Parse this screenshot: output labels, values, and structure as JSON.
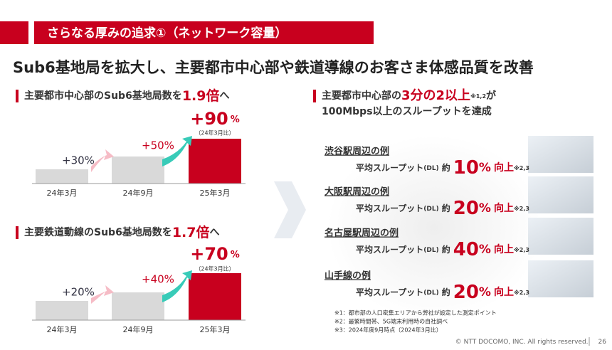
{
  "header": {
    "title": "さらなる厚みの追求①（ネットワーク容量）"
  },
  "headline": "Sub6基地局を拡大し、主要都市中心部や鉄道導線のお客さま体感品質を改善",
  "left": {
    "charts": [
      {
        "heading_pre": "主要都市中心部のSub6基地局数を",
        "heading_em": "1.9倍",
        "heading_post": "へ",
        "categories": [
          "24年3月",
          "24年9月",
          "25年3月"
        ],
        "step_labels": [
          "+30%",
          "+50%"
        ],
        "total": "+90",
        "total_unit": "%",
        "total_note": "（24年3月比）"
      },
      {
        "heading_pre": "主要鉄道動線のSub6基地局数を",
        "heading_em": "1.7倍",
        "heading_post": "へ",
        "categories": [
          "24年3月",
          "24年9月",
          "25年3月"
        ],
        "step_labels": [
          "+20%",
          "+40%"
        ],
        "total": "+70",
        "total_unit": "%",
        "total_note": "（24年3月比）"
      }
    ]
  },
  "right": {
    "heading": {
      "pre": "主要都市中心部の",
      "em": "3分の2以上",
      "note": "※1,2",
      "post": "が",
      "line2": "100Mbps以上のスループットを達成"
    },
    "examples": [
      {
        "name": "渋谷駅周辺の例",
        "label": "平均スループット",
        "dl": "(DL)",
        "approx": "約",
        "value": "10",
        "unit": "%",
        "suffix": "向上",
        "note": "※2,3"
      },
      {
        "name": "大阪駅周辺の例",
        "label": "平均スループット",
        "dl": "(DL)",
        "approx": "約",
        "value": "20",
        "unit": "%",
        "suffix": "向上",
        "note": "※2,3"
      },
      {
        "name": "名古屋駅周辺の例",
        "label": "平均スループット",
        "dl": "(DL)",
        "approx": "約",
        "value": "40",
        "unit": "%",
        "suffix": "向上",
        "note": "※2,3"
      },
      {
        "name": "山手線の例",
        "label": "平均スループット",
        "dl": "(DL)",
        "approx": "約",
        "value": "20",
        "unit": "%",
        "suffix": "向上",
        "note": "※2,3"
      }
    ],
    "footnotes": [
      "※1：都市部の人口密集エリアから弊社が設定した測定ポイント",
      "※2：最繁時間帯、5G端末利用時の自社調べ",
      "※3：2024年度9月時点（2024年3月比）"
    ]
  },
  "footer": {
    "copyright": "© NTT DOCOMO, INC.  All rights reserved.",
    "page": "26"
  }
}
